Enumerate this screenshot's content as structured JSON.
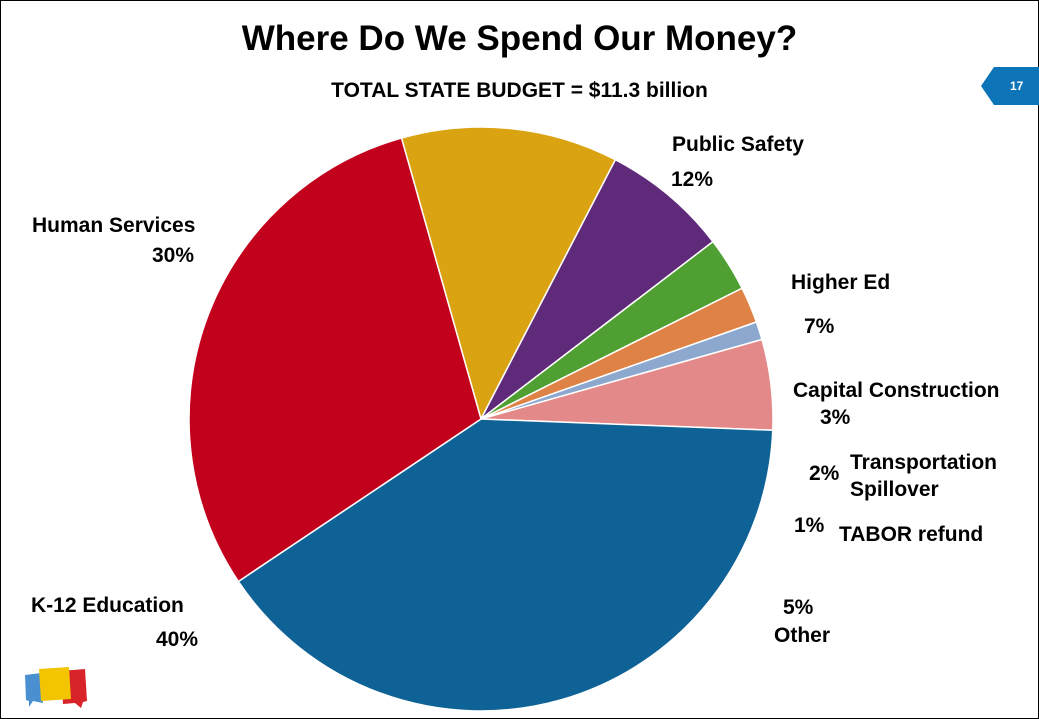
{
  "slide": {
    "title": "Where Do We Spend Our Money?",
    "subtitle": "TOTAL STATE BUDGET =  $11.3 billion",
    "page_number": "17"
  },
  "chart_data": {
    "type": "pie",
    "start_angle_deg": -15.8,
    "direction": "clockwise",
    "slices": [
      {
        "label": "Public Safety",
        "percent_label": "12%",
        "value": 12,
        "color": "#daa312"
      },
      {
        "label": "Higher Ed",
        "percent_label": "7%",
        "value": 7,
        "color": "#5f2a7a"
      },
      {
        "label": "Capital Construction",
        "percent_label": "3%",
        "value": 3,
        "color": "#4f9f32"
      },
      {
        "label_lines": [
          "Transportation",
          "Spillover"
        ],
        "percent_label": "2%",
        "value": 2,
        "color": "#de8245"
      },
      {
        "label": "TABOR refund",
        "percent_label": "1%",
        "value": 1,
        "color": "#8da8cf"
      },
      {
        "label": "Other",
        "percent_label": "5%",
        "value": 5,
        "color": "#e48989"
      },
      {
        "label": "K-12 Education",
        "percent_label": "40%",
        "value": 40,
        "color": "#0f6296"
      },
      {
        "label": "Human Services",
        "percent_label": "30%",
        "value": 30,
        "color": "#c2011c"
      }
    ]
  },
  "logo": {
    "icon": "speech-bubbles-logo-icon",
    "colors": [
      "#4a90d0",
      "#f2c500",
      "#d8232a"
    ]
  }
}
